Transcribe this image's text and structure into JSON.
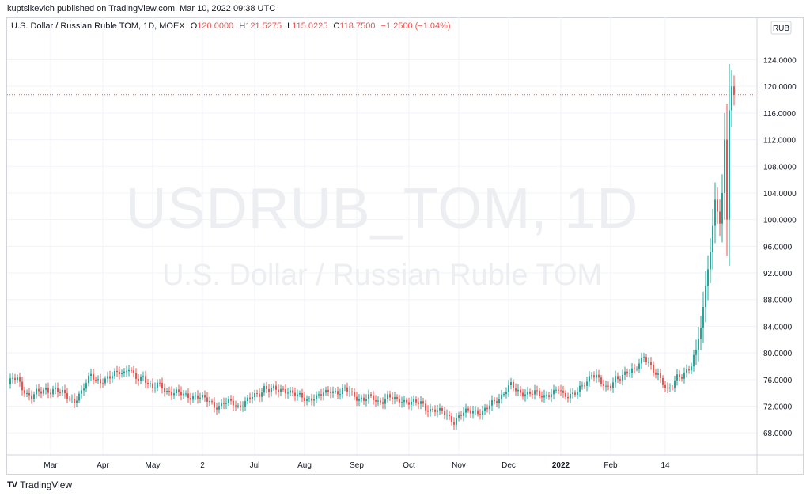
{
  "header": {
    "published": "kuptsikevich published on TradingView.com, Mar 10, 2022 09:38 UTC"
  },
  "legend": {
    "symbol": "U.S. Dollar / Russian Ruble TOM, 1D, MOEX",
    "open_label": "O",
    "open": "120.0000",
    "high_label": "H",
    "high": "121.5275",
    "low_label": "L",
    "low": "115.0225",
    "close_label": "C",
    "close": "118.7500",
    "change": "−1.2500 (−1.04%)"
  },
  "watermark": {
    "ticker": "USDRUB_TOM, 1D",
    "name": "U.S. Dollar / Russian Ruble TOM"
  },
  "footer": {
    "brand": "TradingView",
    "logo": "TV"
  },
  "colors": {
    "up": "#26a69a",
    "down": "#ef5350",
    "grid": "#f0f3fa",
    "axis_text": "#131722",
    "last_price_line": "#ef5350"
  },
  "chart_data": {
    "type": "candlestick",
    "currency_label": "RUB",
    "y_ticks": [
      "124.0000",
      "120.0000",
      "116.0000",
      "112.0000",
      "108.0000",
      "104.0000",
      "100.0000",
      "96.0000",
      "92.0000",
      "88.0000",
      "84.0000",
      "80.0000",
      "76.0000",
      "72.0000",
      "68.0000"
    ],
    "y_tick_values": [
      124,
      120,
      116,
      112,
      108,
      104,
      100,
      96,
      92,
      88,
      84,
      80,
      76,
      72,
      68
    ],
    "ylim": [
      64.7,
      127.5
    ],
    "x_ticks": [
      {
        "label": "Mar",
        "i": 18
      },
      {
        "label": "Apr",
        "i": 40
      },
      {
        "label": "May",
        "i": 61
      },
      {
        "label": "2",
        "i": 82
      },
      {
        "label": "Jul",
        "i": 104
      },
      {
        "label": "Aug",
        "i": 125
      },
      {
        "label": "Sep",
        "i": 147
      },
      {
        "label": "Oct",
        "i": 169
      },
      {
        "label": "Nov",
        "i": 190
      },
      {
        "label": "Dec",
        "i": 211
      },
      {
        "label": "2022",
        "i": 233,
        "bold": true
      },
      {
        "label": "Feb",
        "i": 254
      },
      {
        "label": "14",
        "i": 277
      }
    ],
    "x_count": 290,
    "last_price": 118.75,
    "anchors": [
      [
        0,
        75.3
      ],
      [
        2,
        76.1
      ],
      [
        4,
        76.0
      ],
      [
        6,
        74.8
      ],
      [
        8,
        73.9
      ],
      [
        10,
        73.4
      ],
      [
        12,
        74.0
      ],
      [
        14,
        74.1
      ],
      [
        16,
        74.6
      ],
      [
        18,
        74.3
      ],
      [
        20,
        74.6
      ],
      [
        22,
        73.9
      ],
      [
        24,
        73.8
      ],
      [
        26,
        73.2
      ],
      [
        28,
        72.9
      ],
      [
        31,
        74.0
      ],
      [
        33,
        75.4
      ],
      [
        35,
        76.8
      ],
      [
        37,
        76.2
      ],
      [
        39,
        75.7
      ],
      [
        41,
        75.8
      ],
      [
        43,
        76.2
      ],
      [
        45,
        77.0
      ],
      [
        47,
        77.4
      ],
      [
        49,
        77.0
      ],
      [
        51,
        77.6
      ],
      [
        53,
        76.4
      ],
      [
        55,
        76.0
      ],
      [
        57,
        76.6
      ],
      [
        59,
        75.5
      ],
      [
        61,
        74.6
      ],
      [
        63,
        75.2
      ],
      [
        65,
        74.9
      ],
      [
        67,
        74.3
      ],
      [
        69,
        74.1
      ],
      [
        71,
        74.0
      ],
      [
        73,
        73.8
      ],
      [
        75,
        73.6
      ],
      [
        77,
        73.5
      ],
      [
        79,
        73.5
      ],
      [
        81,
        73.3
      ],
      [
        83,
        73.0
      ],
      [
        85,
        72.8
      ],
      [
        87,
        72.1
      ],
      [
        89,
        72.0
      ],
      [
        91,
        72.4
      ],
      [
        93,
        72.6
      ],
      [
        95,
        72.5
      ],
      [
        97,
        72.0
      ],
      [
        99,
        72.4
      ],
      [
        101,
        72.8
      ],
      [
        103,
        73.4
      ],
      [
        106,
        73.9
      ],
      [
        108,
        74.9
      ],
      [
        110,
        74.4
      ],
      [
        112,
        74.5
      ],
      [
        114,
        74.3
      ],
      [
        116,
        74.5
      ],
      [
        118,
        74.4
      ],
      [
        120,
        73.9
      ],
      [
        122,
        73.5
      ],
      [
        124,
        73.3
      ],
      [
        126,
        73.0
      ],
      [
        128,
        73.3
      ],
      [
        130,
        73.3
      ],
      [
        132,
        73.7
      ],
      [
        134,
        74.0
      ],
      [
        136,
        74.5
      ],
      [
        138,
        74.2
      ],
      [
        140,
        74.0
      ],
      [
        142,
        74.4
      ],
      [
        144,
        74.2
      ],
      [
        146,
        73.6
      ],
      [
        148,
        73.2
      ],
      [
        150,
        72.9
      ],
      [
        152,
        73.3
      ],
      [
        154,
        73.1
      ],
      [
        156,
        72.7
      ],
      [
        158,
        72.9
      ],
      [
        160,
        73.4
      ],
      [
        162,
        73.1
      ],
      [
        164,
        72.8
      ],
      [
        166,
        73.0
      ],
      [
        168,
        72.7
      ],
      [
        170,
        72.6
      ],
      [
        172,
        72.4
      ],
      [
        174,
        72.5
      ],
      [
        176,
        71.8
      ],
      [
        178,
        71.5
      ],
      [
        180,
        71.4
      ],
      [
        182,
        71.1
      ],
      [
        184,
        71.0
      ],
      [
        186,
        70.4
      ],
      [
        188,
        69.7
      ],
      [
        190,
        70.4
      ],
      [
        192,
        70.9
      ],
      [
        194,
        71.3
      ],
      [
        196,
        71.4
      ],
      [
        198,
        71.2
      ],
      [
        200,
        71.0
      ],
      [
        202,
        71.6
      ],
      [
        204,
        72.5
      ],
      [
        206,
        73.0
      ],
      [
        208,
        73.6
      ],
      [
        210,
        74.4
      ],
      [
        212,
        75.1
      ],
      [
        214,
        74.4
      ],
      [
        216,
        74.1
      ],
      [
        218,
        74.0
      ],
      [
        220,
        73.8
      ],
      [
        222,
        74.0
      ],
      [
        224,
        73.7
      ],
      [
        226,
        73.6
      ],
      [
        228,
        73.9
      ],
      [
        230,
        74.0
      ],
      [
        232,
        74.5
      ],
      [
        234,
        73.6
      ],
      [
        236,
        73.7
      ],
      [
        238,
        74.0
      ],
      [
        240,
        74.2
      ],
      [
        242,
        74.8
      ],
      [
        244,
        75.6
      ],
      [
        246,
        77.0
      ],
      [
        248,
        76.7
      ],
      [
        250,
        75.5
      ],
      [
        252,
        74.5
      ],
      [
        254,
        75.0
      ],
      [
        256,
        76.4
      ],
      [
        258,
        76.4
      ],
      [
        260,
        76.8
      ],
      [
        262,
        77.0
      ],
      [
        264,
        77.4
      ],
      [
        266,
        78.7
      ],
      [
        268,
        79.6
      ],
      [
        270,
        78.4
      ],
      [
        272,
        77.0
      ],
      [
        274,
        76.6
      ],
      [
        276,
        75.7
      ],
      [
        278,
        74.6
      ],
      [
        280,
        75.0
      ],
      [
        282,
        76.2
      ],
      [
        284,
        76.4
      ],
      [
        286,
        77.5
      ],
      [
        288,
        78.3
      ],
      [
        290,
        80.5
      ],
      [
        292,
        83.8
      ],
      [
        294,
        90.0
      ],
      [
        296,
        95.1
      ],
      [
        298,
        103.0
      ],
      [
        300,
        99.4
      ],
      [
        301,
        104.0
      ],
      [
        302,
        112.0
      ],
      [
        303,
        100.0
      ],
      [
        304,
        116.4
      ],
      [
        305,
        120.0
      ],
      [
        306,
        118.75
      ]
    ]
  }
}
